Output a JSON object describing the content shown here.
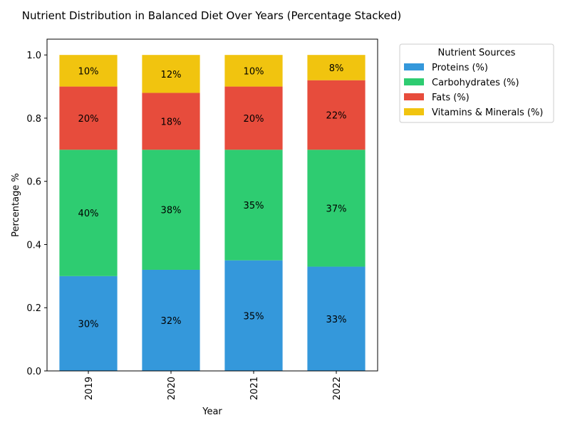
{
  "chart_data": {
    "type": "bar",
    "stacked": true,
    "title": "Nutrient Distribution in Balanced Diet Over Years (Percentage Stacked)",
    "xlabel": "Year",
    "ylabel": "Percentage %",
    "categories": [
      "2019",
      "2020",
      "2021",
      "2022"
    ],
    "ylim": [
      0,
      1.05
    ],
    "yticks": [
      "0.0",
      "0.2",
      "0.4",
      "0.6",
      "0.8",
      "1.0"
    ],
    "grid": false,
    "legend_title": "Nutrient Sources",
    "legend_position": "outside-top-right",
    "series": [
      {
        "name": "Proteins (%)",
        "color": "#3498db",
        "values": [
          0.3,
          0.32,
          0.35,
          0.33
        ],
        "labels": [
          "30%",
          "32%",
          "35%",
          "33%"
        ]
      },
      {
        "name": "Carbohydrates (%)",
        "color": "#2ecc71",
        "values": [
          0.4,
          0.38,
          0.35,
          0.37
        ],
        "labels": [
          "40%",
          "38%",
          "35%",
          "37%"
        ]
      },
      {
        "name": "Fats (%)",
        "color": "#e74c3c",
        "values": [
          0.2,
          0.18,
          0.2,
          0.22
        ],
        "labels": [
          "20%",
          "18%",
          "20%",
          "22%"
        ]
      },
      {
        "name": "Vitamins & Minerals (%)",
        "color": "#f1c40f",
        "values": [
          0.1,
          0.12,
          0.1,
          0.08
        ],
        "labels": [
          "10%",
          "12%",
          "10%",
          "8%"
        ]
      }
    ]
  }
}
